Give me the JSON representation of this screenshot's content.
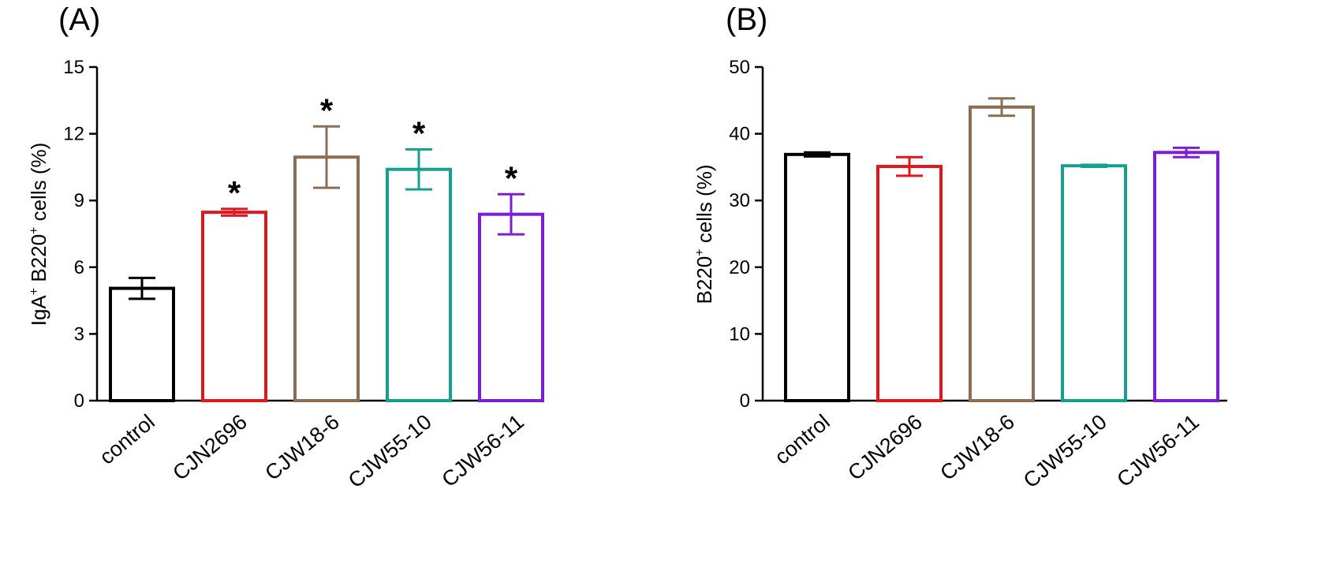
{
  "chart_data": [
    {
      "type": "bar",
      "panel_label": "(A)",
      "ylabel": {
        "pre": "IgA",
        "sup1": "+",
        "mid": " B220",
        "sup2": "+",
        "post": " cells (%)"
      },
      "ylim": [
        0,
        15
      ],
      "yticks": [
        "0",
        "3",
        "6",
        "9",
        "12",
        "15"
      ],
      "categories": [
        "control",
        "CJN2696",
        "CJW18-6",
        "CJW55-10",
        "CJW56-11"
      ],
      "colors": [
        "#000000",
        "#e0161e",
        "#8c6e55",
        "#14a08c",
        "#7a1fd6"
      ],
      "values": [
        5.05,
        8.47,
        10.95,
        10.4,
        8.38
      ],
      "errors": [
        0.47,
        0.15,
        1.38,
        0.9,
        0.9
      ],
      "annotations": [
        "",
        "*",
        "*",
        "*",
        "*"
      ]
    },
    {
      "type": "bar",
      "panel_label": "(B)",
      "ylabel": {
        "pre": "B220",
        "sup1": "+",
        "mid": " cells (%)",
        "sup2": "",
        "post": ""
      },
      "ylim": [
        0,
        50
      ],
      "yticks": [
        "0",
        "10",
        "20",
        "30",
        "40",
        "50"
      ],
      "categories": [
        "control",
        "CJN2696",
        "CJW18-6",
        "CJW55-10",
        "CJW56-11"
      ],
      "colors": [
        "#000000",
        "#e0161e",
        "#8c6e55",
        "#14a08c",
        "#7a1fd6"
      ],
      "values": [
        36.9,
        35.1,
        44.0,
        35.2,
        37.2
      ],
      "errors": [
        0.3,
        1.4,
        1.3,
        0.15,
        0.7
      ],
      "annotations": [
        "",
        "",
        "",
        "",
        ""
      ]
    }
  ]
}
